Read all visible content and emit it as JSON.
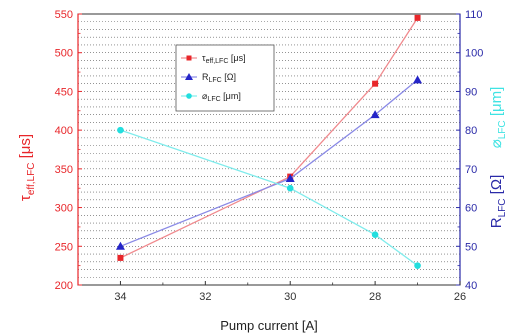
{
  "chart_data": {
    "type": "line",
    "xlabel": "Pump current [A]",
    "x_ticks": [
      34,
      32,
      30,
      28,
      26
    ],
    "x_range": [
      35,
      26
    ],
    "x_reversed": true,
    "y_left": {
      "label_main": "τ",
      "label_sub": "eff,LFC",
      "label_unit": " [μs]",
      "range": [
        200,
        550
      ],
      "ticks": [
        200,
        250,
        300,
        350,
        400,
        450,
        500,
        550
      ],
      "color": "#e8262a"
    },
    "y_right": {
      "label_main": "R",
      "label_sub": "LFC",
      "label_unit": " [Ω]",
      "label2_main": "⌀",
      "label2_sub": "LFC",
      "label2_unit": " [μm]",
      "label2_color": "#3fe3e3",
      "range": [
        40,
        110
      ],
      "ticks": [
        40,
        50,
        60,
        70,
        80,
        90,
        100,
        110
      ],
      "color": "#2a2aa8"
    },
    "grid": true,
    "legend_position": "top-center",
    "series": [
      {
        "name_main": "τ",
        "name_sub": "eff,LFC",
        "name_unit": " [μs]",
        "axis": "left",
        "color": "#e8262a",
        "line_color": "#f08a8e",
        "marker": "square",
        "x": [
          34,
          30,
          28,
          27
        ],
        "y": [
          235,
          340,
          460,
          545
        ]
      },
      {
        "name_main": "R",
        "name_sub": "LFC",
        "name_unit": " [Ω]",
        "axis": "right",
        "color": "#2424c8",
        "line_color": "#8a8ae6",
        "marker": "triangle",
        "x": [
          34,
          30,
          28,
          27
        ],
        "y": [
          50,
          67.5,
          84,
          93
        ]
      },
      {
        "name_main": "⌀",
        "name_sub": "LFC",
        "name_unit": " [μm]",
        "axis": "right",
        "color": "#22dede",
        "line_color": "#7fecec",
        "marker": "circle",
        "x": [
          34,
          30,
          28,
          27
        ],
        "y": [
          80,
          65,
          53,
          45
        ]
      }
    ]
  }
}
